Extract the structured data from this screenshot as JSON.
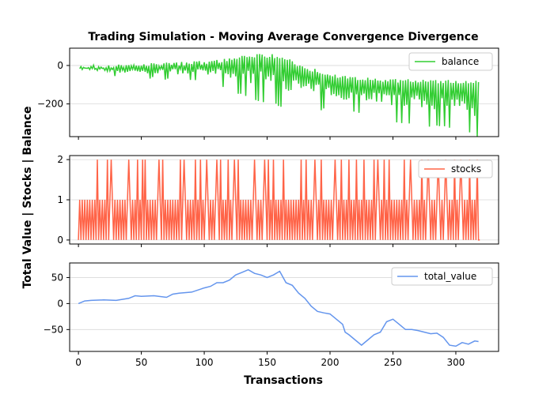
{
  "chart_data": {
    "type": "line",
    "title": "Trading Simulation - Moving Average Convergence Divergence",
    "xlabel": "Transactions",
    "ylabel": "Total Value | Stocks | Balance",
    "xlim": [
      -7,
      334
    ],
    "xticks": [
      0,
      50,
      100,
      150,
      200,
      250,
      300
    ],
    "grid": "horizontal",
    "panels": [
      {
        "name": "balance",
        "color": "#32cd32",
        "legend": "upper right",
        "ylim": [
          -370,
          90
        ],
        "yticks": [
          0,
          -200
        ],
        "envelope_x": [
          1,
          20,
          40,
          60,
          80,
          100,
          120,
          133,
          140,
          155,
          165,
          180,
          200,
          220,
          240,
          250,
          260,
          280,
          300,
          316,
          318
        ],
        "envelope_top": [
          0,
          5,
          10,
          15,
          18,
          25,
          40,
          60,
          60,
          60,
          40,
          0,
          -40,
          -60,
          -65,
          -70,
          -70,
          -75,
          -75,
          -75,
          -75
        ],
        "envelope_bottom": [
          -30,
          -50,
          -70,
          -75,
          -80,
          -95,
          -130,
          -170,
          -180,
          -210,
          -220,
          -230,
          -240,
          -250,
          -260,
          -300,
          -300,
          -320,
          -340,
          -370,
          -370
        ]
      },
      {
        "name": "stocks",
        "color": "#ff6347",
        "legend": "upper right",
        "ylim": [
          -0.1,
          2.1
        ],
        "yticks": [
          0,
          1,
          2
        ],
        "count": 320,
        "spikes_to_2": [
          15,
          23,
          26,
          40,
          47,
          51,
          53,
          64,
          67,
          81,
          84,
          93,
          97,
          102,
          110,
          113,
          119,
          124,
          127,
          140,
          148,
          151,
          155,
          163,
          177,
          181,
          188,
          193,
          204,
          209,
          215,
          221,
          227,
          235,
          238,
          243,
          247,
          259,
          264,
          273,
          278,
          286,
          292,
          299,
          304,
          311,
          317
        ]
      },
      {
        "name": "total_value",
        "color": "#6495ed",
        "legend": "upper right",
        "ylim": [
          -92,
          78
        ],
        "yticks": [
          50,
          0,
          -50
        ],
        "x": [
          0,
          5,
          10,
          20,
          30,
          40,
          45,
          50,
          60,
          70,
          75,
          80,
          90,
          100,
          105,
          110,
          115,
          120,
          125,
          130,
          135,
          140,
          145,
          150,
          155,
          160,
          165,
          170,
          175,
          180,
          185,
          190,
          195,
          200,
          205,
          210,
          212,
          215,
          220,
          225,
          230,
          235,
          240,
          245,
          250,
          255,
          260,
          265,
          270,
          275,
          280,
          285,
          290,
          295,
          300,
          305,
          310,
          315,
          318
        ],
        "y": [
          0,
          5,
          6,
          7,
          6,
          10,
          15,
          14,
          15,
          12,
          18,
          20,
          22,
          30,
          33,
          40,
          40,
          45,
          55,
          60,
          65,
          58,
          55,
          50,
          55,
          62,
          40,
          35,
          20,
          10,
          -5,
          -15,
          -18,
          -20,
          -30,
          -40,
          -55,
          -60,
          -70,
          -80,
          -70,
          -60,
          -55,
          -35,
          -30,
          -40,
          -50,
          -50,
          -52,
          -55,
          -58,
          -57,
          -65,
          -80,
          -82,
          -75,
          -78,
          -72,
          -73
        ]
      }
    ]
  }
}
